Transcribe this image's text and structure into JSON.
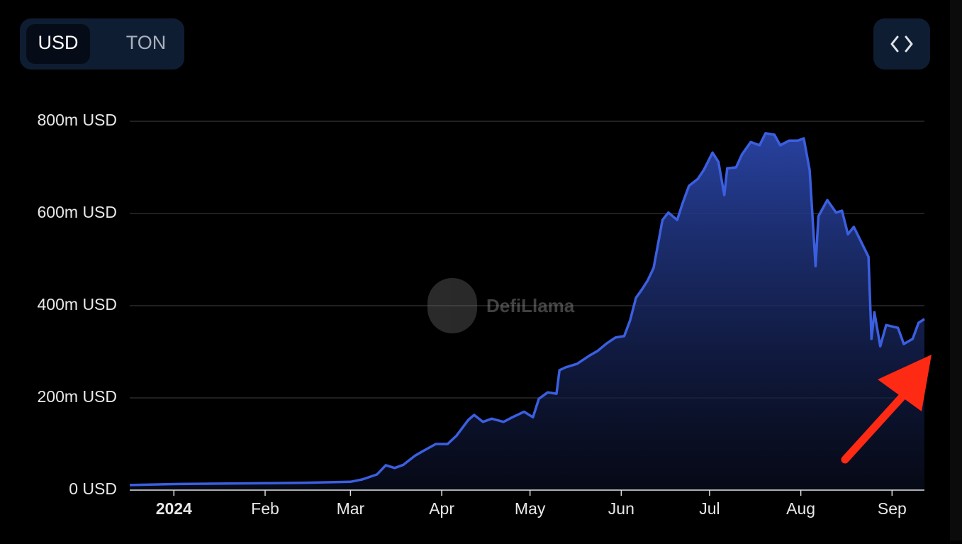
{
  "toggle": {
    "options": [
      "USD",
      "TON"
    ],
    "selected": 0
  },
  "watermark": "DefiLlama",
  "chart_data": {
    "type": "area",
    "x": [
      -15,
      0,
      15,
      31,
      45,
      60,
      64,
      69,
      72,
      75,
      78,
      82,
      85,
      89,
      93,
      96,
      100,
      102,
      105,
      108,
      112,
      115,
      119,
      122,
      124,
      127,
      130,
      131,
      133,
      137,
      141,
      144,
      147,
      150,
      153,
      155,
      157,
      159,
      161,
      163,
      166,
      168,
      171,
      173,
      175,
      178,
      180,
      183,
      185,
      187,
      188,
      191,
      193,
      196,
      199,
      201,
      204,
      206,
      209,
      212,
      214,
      216,
      218,
      219,
      222,
      225,
      227,
      229,
      231,
      234,
      236,
      237,
      238,
      240,
      242,
      246,
      248,
      251,
      253,
      255
    ],
    "series": [
      {
        "color": "#3b5fe0",
        "values": [
          11,
          13,
          14,
          15,
          16,
          18,
          23,
          34,
          54,
          48,
          55,
          75,
          86,
          100,
          100,
          118,
          152,
          163,
          148,
          155,
          148,
          158,
          170,
          158,
          198,
          212,
          209,
          260,
          266,
          274,
          291,
          302,
          318,
          331,
          334,
          368,
          417,
          435,
          455,
          482,
          586,
          602,
          586,
          625,
          660,
          675,
          694,
          732,
          712,
          640,
          698,
          700,
          728,
          755,
          748,
          774,
          771,
          748,
          758,
          758,
          763,
          694,
          486,
          594,
          629,
          602,
          606,
          555,
          571,
          532,
          506,
          328,
          386,
          312,
          358,
          352,
          317,
          328,
          363,
          371
        ]
      }
    ],
    "xlim": [
      -15,
      255
    ],
    "xticks": [
      {
        "value": 0,
        "label": "2024"
      },
      {
        "value": 31,
        "label": "Feb"
      },
      {
        "value": 60,
        "label": "Mar"
      },
      {
        "value": 91,
        "label": "Apr"
      },
      {
        "value": 121,
        "label": "May"
      },
      {
        "value": 152,
        "label": "Jun"
      },
      {
        "value": 182,
        "label": "Jul"
      },
      {
        "value": 213,
        "label": "Aug"
      },
      {
        "value": 244,
        "label": "Sep"
      }
    ],
    "ylim": [
      0,
      800
    ],
    "yticks": [
      {
        "value": 0,
        "label": "0 USD"
      },
      {
        "value": 200,
        "label": "200m USD"
      },
      {
        "value": 400,
        "label": "400m USD"
      },
      {
        "value": 600,
        "label": "600m USD"
      },
      {
        "value": 800,
        "label": "800m USD"
      }
    ],
    "grid": true
  }
}
